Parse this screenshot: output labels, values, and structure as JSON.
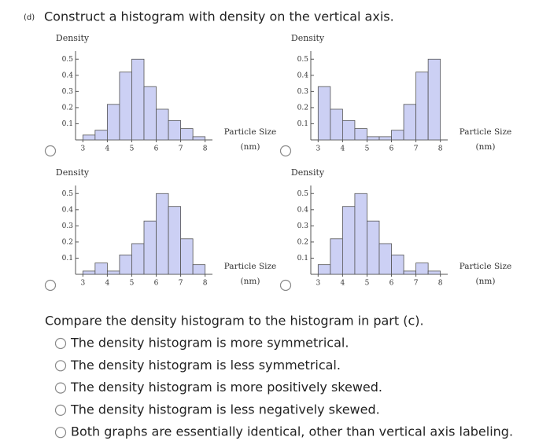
{
  "header": {
    "part": "(d)",
    "title": "Construct a histogram with density on the vertical axis."
  },
  "chart_data": [
    {
      "type": "histogram",
      "ylabel": "Density",
      "xlabel": [
        "Particle Size",
        "(nm)"
      ],
      "bins": [
        3,
        3.5,
        4,
        4.5,
        5,
        5.5,
        6,
        6.5,
        7,
        7.5,
        8
      ],
      "values": [
        0.03,
        0.06,
        0.22,
        0.42,
        0.5,
        0.33,
        0.19,
        0.12,
        0.07,
        0.02
      ],
      "xlim": [
        2.7,
        8.3
      ],
      "xticks": [
        3,
        4,
        5,
        6,
        7,
        8
      ],
      "ylim": [
        0,
        0.55
      ],
      "yticks": [
        0.1,
        0.2,
        0.3,
        0.4,
        0.5
      ],
      "color": "#ccd0f4"
    },
    {
      "type": "histogram",
      "ylabel": "Density",
      "xlabel": [
        "Particle Size",
        "(nm)"
      ],
      "bins": [
        3,
        3.5,
        4,
        4.5,
        5,
        5.5,
        6,
        6.5,
        7,
        7.5,
        8
      ],
      "values": [
        0.33,
        0.19,
        0.12,
        0.07,
        0.02,
        0.02,
        0.06,
        0.22,
        0.42,
        0.5
      ],
      "xlim": [
        2.7,
        8.3
      ],
      "xticks": [
        3,
        4,
        5,
        6,
        7,
        8
      ],
      "ylim": [
        0,
        0.55
      ],
      "yticks": [
        0.1,
        0.2,
        0.3,
        0.4,
        0.5
      ],
      "color": "#ccd0f4"
    },
    {
      "type": "histogram",
      "ylabel": "Density",
      "xlabel": [
        "Particle Size",
        "(nm)"
      ],
      "bins": [
        3,
        3.5,
        4,
        4.5,
        5,
        5.5,
        6,
        6.5,
        7,
        7.5,
        8
      ],
      "values": [
        0.02,
        0.07,
        0.02,
        0.12,
        0.19,
        0.33,
        0.5,
        0.42,
        0.22,
        0.06
      ],
      "xlim": [
        2.7,
        8.3
      ],
      "xticks": [
        3,
        4,
        5,
        6,
        7,
        8
      ],
      "ylim": [
        0,
        0.55
      ],
      "yticks": [
        0.1,
        0.2,
        0.3,
        0.4,
        0.5
      ],
      "color": "#ccd0f4"
    },
    {
      "type": "histogram",
      "ylabel": "Density",
      "xlabel": [
        "Particle Size",
        "(nm)"
      ],
      "bins": [
        3,
        3.5,
        4,
        4.5,
        5,
        5.5,
        6,
        6.5,
        7,
        7.5,
        8
      ],
      "values": [
        0.06,
        0.22,
        0.42,
        0.5,
        0.33,
        0.19,
        0.12,
        0.02,
        0.07,
        0.02
      ],
      "xlim": [
        2.7,
        8.3
      ],
      "xticks": [
        3,
        4,
        5,
        6,
        7,
        8
      ],
      "ylim": [
        0,
        0.55
      ],
      "yticks": [
        0.1,
        0.2,
        0.3,
        0.4,
        0.5
      ],
      "color": "#ccd0f4"
    }
  ],
  "question": {
    "prompt": "Compare the density histogram to the histogram in part (c).",
    "options": [
      "The density histogram is more symmetrical.",
      "The density histogram is less symmetrical.",
      "The density histogram is more positively skewed.",
      "The density histogram is less negatively skewed.",
      "Both graphs are essentially identical, other than vertical axis labeling."
    ]
  }
}
